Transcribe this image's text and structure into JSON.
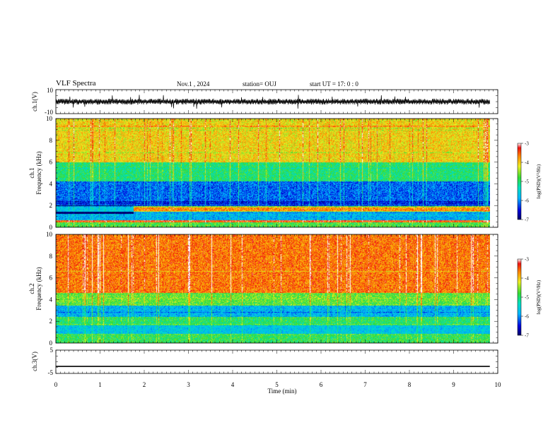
{
  "header": {
    "title": "VLF Spectra",
    "date": "Nov.1  , 2024",
    "station": "station= OUJ",
    "start": "start  UT  =   17: 0  : 0"
  },
  "chart_data": [
    {
      "type": "line",
      "panel": "ch1-waveform",
      "ylabel": "ch.1(V)",
      "ylim": [
        -10,
        10
      ],
      "yticks": [
        "10",
        "-10"
      ],
      "x_range_min": [
        0,
        9.82
      ],
      "baseline": 0,
      "amplitude_typical": 2.5,
      "spike_peak": 6
    },
    {
      "type": "heatmap",
      "panel": "ch1-spectrogram",
      "ylabel": "ch.1\nFrequency  (kHz)",
      "ylim": [
        0,
        10
      ],
      "yticks": [
        "0",
        "2",
        "4",
        "6",
        "8",
        "10"
      ],
      "colorbar": {
        "label": "log(PSD)(V²/Hz)",
        "ticks": [
          "-3",
          "-4",
          "-5",
          "-6",
          "-7"
        ],
        "range": [
          -7,
          -3
        ]
      },
      "bands": [
        {
          "f": [
            0,
            0.4
          ],
          "level": -4.7
        },
        {
          "f": [
            0.4,
            0.6
          ],
          "level": -3.3
        },
        {
          "f": [
            0.6,
            1.4
          ],
          "level": -5.8
        },
        {
          "f": [
            1.4,
            1.9
          ],
          "level": -4.2
        },
        {
          "f": [
            1.9,
            2.4
          ],
          "level": -6.5
        },
        {
          "f": [
            2.4,
            4.2
          ],
          "level": -6.2
        },
        {
          "f": [
            4.2,
            6.0
          ],
          "level": -5.0
        },
        {
          "f": [
            6.0,
            10.0
          ],
          "level": -4.0
        }
      ]
    },
    {
      "type": "heatmap",
      "panel": "ch2-spectrogram",
      "ylabel": "ch.2\nFrequency  (kHz)",
      "ylim": [
        0,
        10
      ],
      "yticks": [
        "0",
        "2",
        "4",
        "6",
        "8",
        "10"
      ],
      "colorbar": {
        "label": "log(PSD)(V²/Hz)",
        "ticks": [
          "-3",
          "-4",
          "-5",
          "-6",
          "-7"
        ],
        "range": [
          -7,
          -3
        ]
      },
      "bands": [
        {
          "f": [
            0,
            0.8
          ],
          "level": -4.8
        },
        {
          "f": [
            0.8,
            1.6
          ],
          "level": -5.6
        },
        {
          "f": [
            1.6,
            2.4
          ],
          "level": -4.9
        },
        {
          "f": [
            2.4,
            3.4
          ],
          "level": -5.8
        },
        {
          "f": [
            3.4,
            4.6
          ],
          "level": -4.6
        },
        {
          "f": [
            4.6,
            10.0
          ],
          "level": -3.5
        }
      ]
    },
    {
      "type": "line",
      "panel": "ch3-waveform",
      "ylabel": "ch.3(V)",
      "ylim": [
        -5,
        5
      ],
      "yticks": [
        "5",
        "0",
        "-5"
      ],
      "x": [
        0,
        9.82
      ],
      "y": [
        -2,
        -2
      ]
    }
  ],
  "xaxis": {
    "label": "Time  (min)",
    "ticks": [
      "0",
      "1",
      "2",
      "3",
      "4",
      "5",
      "6",
      "7",
      "8",
      "9",
      "10"
    ],
    "range": [
      0,
      10
    ]
  }
}
